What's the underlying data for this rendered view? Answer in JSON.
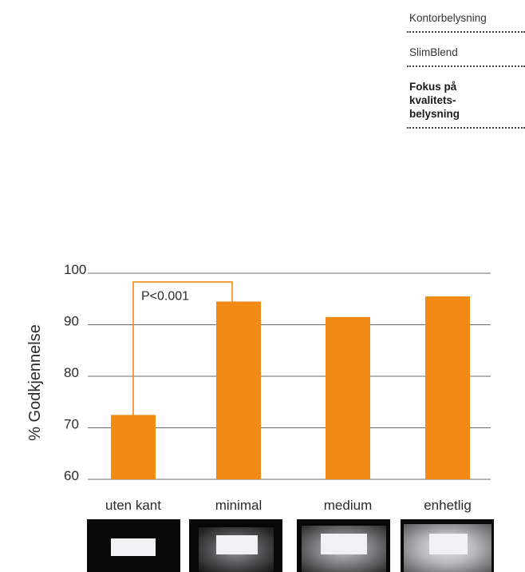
{
  "nav": {
    "items": [
      "Kontorbelysning",
      "SlimBlend",
      "Fokus på\nkvalitets-\nbelysning"
    ],
    "active_index": 2
  },
  "chart_data": {
    "type": "bar",
    "categories": [
      "uten kant",
      "minimal",
      "medium",
      "enhetlig"
    ],
    "values": [
      72.5,
      94.5,
      91.5,
      95.5
    ],
    "ylabel": "% Godkjennelse",
    "ylim": [
      60,
      100
    ],
    "yticks": [
      60,
      70,
      80,
      90,
      100
    ],
    "grid": true,
    "bar_color": "#f28a16",
    "annotation": {
      "text": "P<0.001",
      "from": "uten kant",
      "to": "minimal"
    }
  },
  "thumbnails": [
    {
      "name": "uten kant",
      "frame": "none"
    },
    {
      "name": "minimal",
      "frame": "minimal"
    },
    {
      "name": "medium",
      "frame": "medium"
    },
    {
      "name": "enhetlig",
      "frame": "enhetlig"
    }
  ]
}
